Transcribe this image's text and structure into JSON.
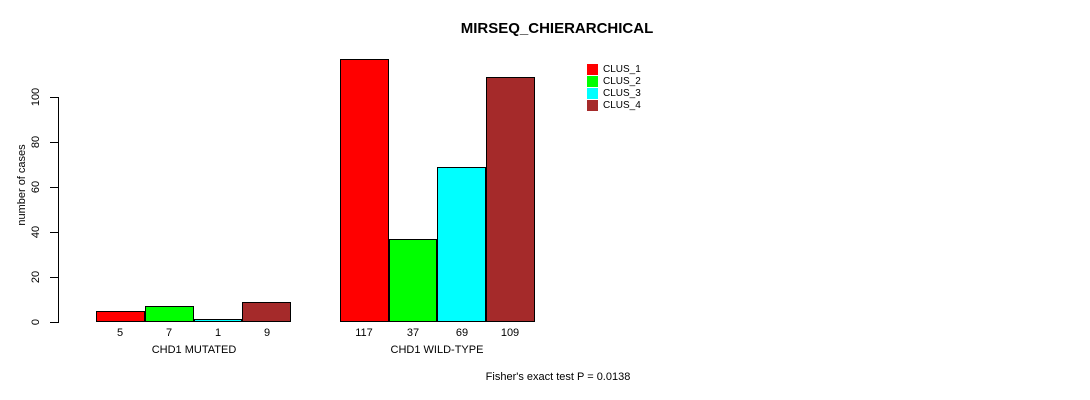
{
  "title": "MIRSEQ_CHIERARCHICAL",
  "ylabel": "number of cases",
  "footer": "Fisher's exact test P = 0.0138",
  "legend": {
    "items": [
      {
        "label": "CLUS_1",
        "color": "#FF0000"
      },
      {
        "label": "CLUS_2",
        "color": "#00FF00"
      },
      {
        "label": "CLUS_3",
        "color": "#00FFFF"
      },
      {
        "label": "CLUS_4",
        "color": "#A52A2A"
      }
    ]
  },
  "chart_data": {
    "type": "bar",
    "title": "MIRSEQ_CHIERARCHICAL",
    "ylabel": "number of cases",
    "xlabel": "",
    "categories": [
      "CHD1 MUTATED",
      "CHD1 WILD-TYPE"
    ],
    "series": [
      {
        "name": "CLUS_1",
        "color": "#FF0000",
        "values": [
          5,
          117
        ]
      },
      {
        "name": "CLUS_2",
        "color": "#00FF00",
        "values": [
          7,
          37
        ]
      },
      {
        "name": "CLUS_3",
        "color": "#00FFFF",
        "values": [
          1,
          69
        ]
      },
      {
        "name": "CLUS_4",
        "color": "#A52A2A",
        "values": [
          9,
          109
        ]
      }
    ],
    "bar_value_labels": [
      [
        "5",
        "7",
        "1",
        "9"
      ],
      [
        "117",
        "37",
        "69",
        "109"
      ]
    ],
    "yticks": [
      0,
      20,
      40,
      60,
      80,
      100
    ],
    "ylim": [
      0,
      122
    ],
    "grid": false,
    "legend_position": "top-right",
    "annotation": "Fisher's exact test P = 0.0138"
  }
}
